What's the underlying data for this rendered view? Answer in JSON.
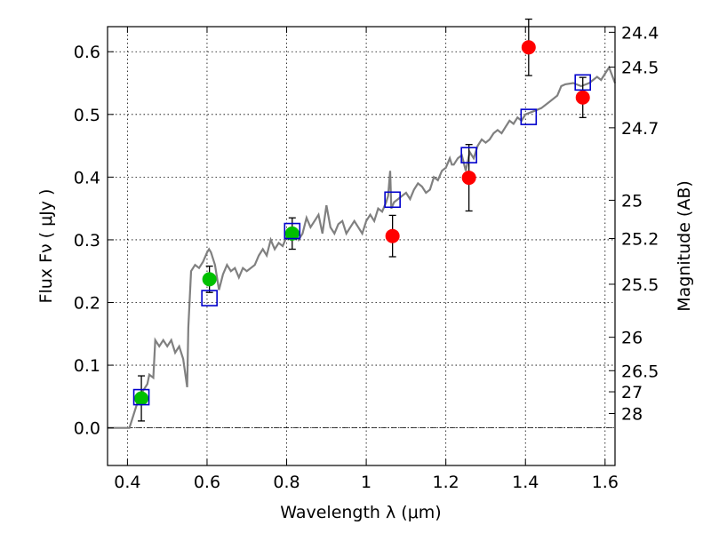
{
  "chart_data": {
    "type": "scatter",
    "xlabel": "Wavelength  λ (μm)",
    "ylabel": "Flux  Fν  ( μJy )",
    "y2label": "Magnitude (AB)",
    "xlim": [
      0.35,
      1.625
    ],
    "ylim": [
      -0.06,
      0.64
    ],
    "grid": true,
    "x_ticks": [
      {
        "value": 0.4,
        "label": "0.4"
      },
      {
        "value": 0.6,
        "label": "0.6"
      },
      {
        "value": 0.8,
        "label": "0.8"
      },
      {
        "value": 1.0,
        "label": "1"
      },
      {
        "value": 1.2,
        "label": "1.2"
      },
      {
        "value": 1.4,
        "label": "1.4"
      },
      {
        "value": 1.6,
        "label": "1.6"
      }
    ],
    "y_ticks": [
      {
        "value": 0.0,
        "label": "0.0"
      },
      {
        "value": 0.1,
        "label": "0.1"
      },
      {
        "value": 0.2,
        "label": "0.2"
      },
      {
        "value": 0.3,
        "label": "0.3"
      },
      {
        "value": 0.4,
        "label": "0.4"
      },
      {
        "value": 0.5,
        "label": "0.5"
      },
      {
        "value": 0.6,
        "label": "0.6"
      }
    ],
    "y2_ticks": [
      {
        "mag": 24.4,
        "label": "24.4"
      },
      {
        "mag": 24.5,
        "label": "24.5"
      },
      {
        "mag": 24.7,
        "label": "24.7"
      },
      {
        "mag": 25.0,
        "label": "25"
      },
      {
        "mag": 25.2,
        "label": "25.2"
      },
      {
        "mag": 25.5,
        "label": "25.5"
      },
      {
        "mag": 26.0,
        "label": "26"
      },
      {
        "mag": 26.5,
        "label": "26.5"
      },
      {
        "mag": 27.0,
        "label": "27"
      },
      {
        "mag": 28.0,
        "label": "28"
      }
    ],
    "colors": {
      "model": "#808080",
      "green": "#00c000",
      "red": "#ff0000",
      "blue": "#0000cc",
      "errorbar": "#000000",
      "zero_line": "#000000"
    },
    "model_spectrum": [
      [
        0.35,
        0.0
      ],
      [
        0.405,
        0.0
      ],
      [
        0.415,
        0.02
      ],
      [
        0.43,
        0.05
      ],
      [
        0.44,
        0.06
      ],
      [
        0.45,
        0.07
      ],
      [
        0.455,
        0.085
      ],
      [
        0.465,
        0.08
      ],
      [
        0.47,
        0.14
      ],
      [
        0.48,
        0.13
      ],
      [
        0.49,
        0.14
      ],
      [
        0.5,
        0.13
      ],
      [
        0.51,
        0.14
      ],
      [
        0.52,
        0.12
      ],
      [
        0.53,
        0.13
      ],
      [
        0.54,
        0.11
      ],
      [
        0.55,
        0.065
      ],
      [
        0.553,
        0.16
      ],
      [
        0.56,
        0.25
      ],
      [
        0.57,
        0.26
      ],
      [
        0.58,
        0.255
      ],
      [
        0.59,
        0.265
      ],
      [
        0.6,
        0.28
      ],
      [
        0.605,
        0.285
      ],
      [
        0.61,
        0.28
      ],
      [
        0.62,
        0.26
      ],
      [
        0.63,
        0.22
      ],
      [
        0.64,
        0.245
      ],
      [
        0.65,
        0.26
      ],
      [
        0.66,
        0.25
      ],
      [
        0.67,
        0.255
      ],
      [
        0.68,
        0.24
      ],
      [
        0.69,
        0.255
      ],
      [
        0.7,
        0.25
      ],
      [
        0.72,
        0.26
      ],
      [
        0.73,
        0.275
      ],
      [
        0.74,
        0.285
      ],
      [
        0.75,
        0.275
      ],
      [
        0.76,
        0.3
      ],
      [
        0.77,
        0.285
      ],
      [
        0.78,
        0.295
      ],
      [
        0.79,
        0.29
      ],
      [
        0.8,
        0.305
      ],
      [
        0.81,
        0.3
      ],
      [
        0.82,
        0.315
      ],
      [
        0.83,
        0.3
      ],
      [
        0.84,
        0.31
      ],
      [
        0.85,
        0.335
      ],
      [
        0.86,
        0.32
      ],
      [
        0.87,
        0.33
      ],
      [
        0.88,
        0.34
      ],
      [
        0.89,
        0.31
      ],
      [
        0.9,
        0.355
      ],
      [
        0.91,
        0.32
      ],
      [
        0.92,
        0.31
      ],
      [
        0.93,
        0.325
      ],
      [
        0.94,
        0.33
      ],
      [
        0.95,
        0.31
      ],
      [
        0.96,
        0.32
      ],
      [
        0.97,
        0.33
      ],
      [
        0.98,
        0.32
      ],
      [
        0.99,
        0.31
      ],
      [
        1.0,
        0.33
      ],
      [
        1.01,
        0.34
      ],
      [
        1.02,
        0.33
      ],
      [
        1.03,
        0.35
      ],
      [
        1.04,
        0.345
      ],
      [
        1.05,
        0.36
      ],
      [
        1.055,
        0.37
      ],
      [
        1.06,
        0.41
      ],
      [
        1.063,
        0.35
      ],
      [
        1.07,
        0.36
      ],
      [
        1.08,
        0.365
      ],
      [
        1.09,
        0.37
      ],
      [
        1.1,
        0.375
      ],
      [
        1.11,
        0.365
      ],
      [
        1.12,
        0.38
      ],
      [
        1.13,
        0.39
      ],
      [
        1.14,
        0.385
      ],
      [
        1.15,
        0.375
      ],
      [
        1.16,
        0.38
      ],
      [
        1.17,
        0.4
      ],
      [
        1.18,
        0.395
      ],
      [
        1.19,
        0.41
      ],
      [
        1.2,
        0.415
      ],
      [
        1.21,
        0.43
      ],
      [
        1.215,
        0.42
      ],
      [
        1.22,
        0.42
      ],
      [
        1.23,
        0.43
      ],
      [
        1.24,
        0.435
      ],
      [
        1.25,
        0.41
      ],
      [
        1.26,
        0.44
      ],
      [
        1.27,
        0.43
      ],
      [
        1.28,
        0.45
      ],
      [
        1.29,
        0.46
      ],
      [
        1.3,
        0.455
      ],
      [
        1.31,
        0.46
      ],
      [
        1.32,
        0.47
      ],
      [
        1.33,
        0.475
      ],
      [
        1.34,
        0.47
      ],
      [
        1.35,
        0.48
      ],
      [
        1.36,
        0.49
      ],
      [
        1.37,
        0.485
      ],
      [
        1.38,
        0.495
      ],
      [
        1.39,
        0.49
      ],
      [
        1.4,
        0.5
      ],
      [
        1.42,
        0.505
      ],
      [
        1.44,
        0.51
      ],
      [
        1.46,
        0.52
      ],
      [
        1.48,
        0.53
      ],
      [
        1.49,
        0.545
      ],
      [
        1.5,
        0.548
      ],
      [
        1.52,
        0.55
      ],
      [
        1.54,
        0.545
      ],
      [
        1.56,
        0.55
      ],
      [
        1.58,
        0.56
      ],
      [
        1.59,
        0.555
      ],
      [
        1.6,
        0.565
      ],
      [
        1.61,
        0.575
      ],
      [
        1.625,
        0.55
      ]
    ],
    "series": [
      {
        "marker": "circle",
        "color": "green",
        "points": [
          {
            "x": 0.435,
            "y": 0.047,
            "yerr": 0.036
          },
          {
            "x": 0.606,
            "y": 0.237,
            "yerr": 0.021
          },
          {
            "x": 0.814,
            "y": 0.31,
            "yerr": 0.025
          }
        ]
      },
      {
        "marker": "circle",
        "color": "red",
        "points": [
          {
            "x": 1.066,
            "y": 0.306,
            "yerr": 0.033
          },
          {
            "x": 1.258,
            "y": 0.399,
            "yerr": 0.053
          },
          {
            "x": 1.408,
            "y": 0.607,
            "yerr": 0.045
          },
          {
            "x": 1.544,
            "y": 0.527,
            "yerr": 0.032
          }
        ]
      },
      {
        "marker": "square-open",
        "color": "blue",
        "points": [
          {
            "x": 0.435,
            "y": 0.049
          },
          {
            "x": 0.606,
            "y": 0.207
          },
          {
            "x": 0.814,
            "y": 0.314
          },
          {
            "x": 1.066,
            "y": 0.364
          },
          {
            "x": 1.258,
            "y": 0.435
          },
          {
            "x": 1.408,
            "y": 0.496
          },
          {
            "x": 1.544,
            "y": 0.551
          }
        ]
      }
    ]
  }
}
